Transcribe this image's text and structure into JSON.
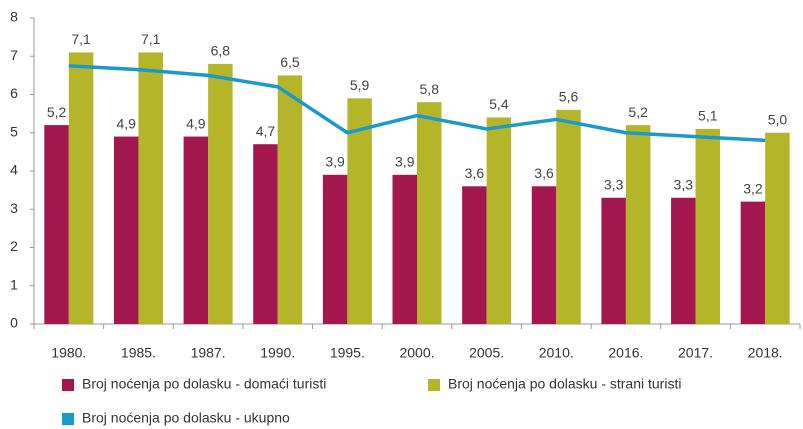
{
  "chart_data": {
    "type": "bar",
    "categories": [
      "1980.",
      "1985.",
      "1987.",
      "1990.",
      "1995.",
      "2000.",
      "2005.",
      "2010.",
      "2016.",
      "2017.",
      "2018."
    ],
    "series": [
      {
        "name": "Broj noćenja po dolasku - domaći turisti",
        "color": "#a3174f",
        "values": [
          5.2,
          4.9,
          4.9,
          4.7,
          3.9,
          3.9,
          3.6,
          3.6,
          3.3,
          3.3,
          3.2
        ],
        "value_labels": [
          "5,2",
          "4,9",
          "4,9",
          "4,7",
          "3,9",
          "3,9",
          "3,6",
          "3,6",
          "3,3",
          "3,3",
          "3,2"
        ]
      },
      {
        "name": "Broj noćenja po dolasku - strani turisti",
        "color": "#b5b52a",
        "values": [
          7.1,
          7.1,
          6.8,
          6.5,
          5.9,
          5.8,
          5.4,
          5.6,
          5.2,
          5.1,
          5.0
        ],
        "value_labels": [
          "7,1",
          "7,1",
          "6,8",
          "6,5",
          "5,9",
          "5,8",
          "5,4",
          "5,6",
          "5,2",
          "5,1",
          "5,0"
        ]
      },
      {
        "name": "Broj noćenja po dolasku - ukupno",
        "color": "#1a9ac9",
        "type": "line",
        "values": [
          6.75,
          6.65,
          6.5,
          6.2,
          5.0,
          5.45,
          5.1,
          5.35,
          5.0,
          4.9,
          4.8
        ]
      }
    ],
    "ylim": [
      0,
      8
    ],
    "yticks": [
      0,
      1,
      2,
      3,
      4,
      5,
      6,
      7,
      8
    ],
    "grid": false
  }
}
